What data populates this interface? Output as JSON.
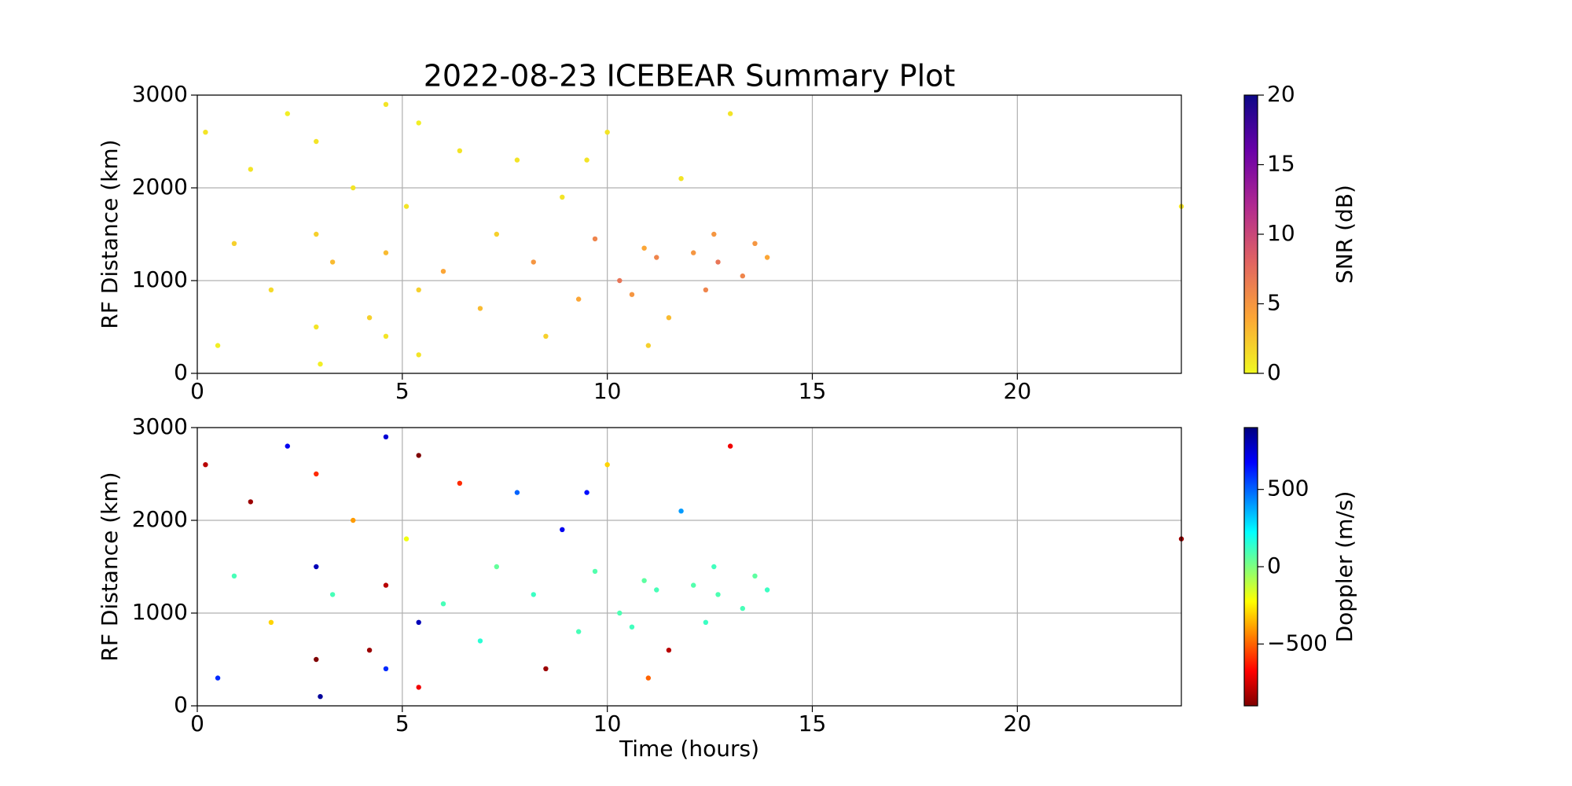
{
  "chart_data": [
    {
      "type": "scatter",
      "title": "2022-08-23 ICEBEAR Summary Plot",
      "y_label": "RF Distance (km)",
      "xlim": [
        0,
        24
      ],
      "xticks": [
        0,
        5,
        10,
        15,
        20
      ],
      "ylim": [
        0,
        3000
      ],
      "yticks": [
        0,
        1000,
        2000,
        3000
      ],
      "grid": true,
      "x": [
        0.2,
        0.5,
        0.9,
        1.3,
        1.8,
        2.2,
        2.9,
        2.9,
        2.9,
        3.0,
        3.3,
        3.8,
        4.2,
        4.6,
        4.6,
        4.6,
        5.1,
        5.4,
        5.4,
        5.4,
        6.0,
        6.4,
        6.9,
        7.3,
        7.8,
        8.2,
        8.5,
        8.9,
        9.3,
        9.7,
        10.0,
        10.3,
        10.6,
        10.9,
        11.2,
        11.5,
        11.8,
        12.1,
        12.4,
        12.7,
        13.0,
        13.3,
        13.6,
        13.9,
        9.5,
        11.0,
        12.6,
        24.0
      ],
      "values": [
        2600,
        300,
        1400,
        2200,
        900,
        2800,
        500,
        1500,
        2500,
        100,
        1200,
        2000,
        600,
        2900,
        1300,
        400,
        1800,
        2700,
        900,
        200,
        1100,
        2400,
        700,
        1500,
        2300,
        1200,
        400,
        1900,
        800,
        1450,
        2600,
        1000,
        850,
        1350,
        1250,
        600,
        2100,
        1300,
        900,
        1200,
        2800,
        1050,
        1400,
        1250,
        2300,
        300,
        1500,
        1800
      ],
      "color_values": [
        1,
        0.5,
        2,
        1,
        1.5,
        0.5,
        1,
        2,
        1,
        0.5,
        3,
        1,
        2,
        1,
        3,
        1,
        1,
        0.5,
        2,
        1,
        4,
        1,
        3,
        2,
        1,
        5,
        2,
        1,
        4,
        6,
        1,
        7,
        5,
        4,
        6,
        3,
        1,
        5,
        6,
        7,
        1,
        6,
        5,
        4,
        1,
        2,
        5,
        1
      ],
      "colorbar": {
        "label": "SNR (dB)",
        "lim": [
          0,
          20
        ],
        "ticks": [
          0,
          5,
          10,
          15,
          20
        ],
        "colors": [
          "#f0f921",
          "#fca636",
          "#e16462",
          "#b12a90",
          "#6a00a8",
          "#0d0887"
        ]
      }
    },
    {
      "type": "scatter",
      "y_label": "RF Distance (km)",
      "x_label": "Time (hours)",
      "xlim": [
        0,
        24
      ],
      "xticks": [
        0,
        5,
        10,
        15,
        20
      ],
      "ylim": [
        0,
        3000
      ],
      "yticks": [
        0,
        1000,
        2000,
        3000
      ],
      "grid": true,
      "x": [
        0.2,
        0.5,
        0.9,
        1.3,
        1.8,
        2.2,
        2.9,
        2.9,
        2.9,
        3.0,
        3.3,
        3.8,
        4.2,
        4.6,
        4.6,
        4.6,
        5.1,
        5.4,
        5.4,
        5.4,
        6.0,
        6.4,
        6.9,
        7.3,
        7.8,
        8.2,
        8.5,
        8.9,
        9.3,
        9.7,
        10.0,
        10.3,
        10.6,
        10.9,
        11.2,
        11.5,
        11.8,
        12.1,
        12.4,
        12.7,
        13.0,
        13.3,
        13.6,
        13.9,
        9.5,
        11.0,
        12.6,
        24.0
      ],
      "values": [
        2600,
        300,
        1400,
        2200,
        900,
        2800,
        500,
        1500,
        2500,
        100,
        1200,
        2000,
        600,
        2900,
        1300,
        400,
        1800,
        2700,
        900,
        200,
        1100,
        2400,
        700,
        1500,
        2300,
        1200,
        400,
        1900,
        800,
        1450,
        2600,
        1000,
        850,
        1350,
        1250,
        600,
        2100,
        1300,
        900,
        1200,
        2800,
        1050,
        1400,
        1250,
        2300,
        300,
        1500,
        1800
      ],
      "color_values": [
        -800,
        600,
        100,
        -850,
        -300,
        700,
        -900,
        800,
        -600,
        850,
        100,
        -400,
        -850,
        750,
        -800,
        600,
        -200,
        -900,
        800,
        -700,
        100,
        -600,
        150,
        50,
        500,
        120,
        -850,
        700,
        100,
        80,
        -300,
        90,
        110,
        60,
        100,
        -800,
        400,
        80,
        120,
        90,
        -700,
        100,
        60,
        120,
        650,
        -500,
        110,
        -850
      ],
      "colorbar": {
        "label": "Doppler (m/s)",
        "lim": [
          -900,
          900
        ],
        "ticks": [
          {
            "value": -500,
            "label": "−500"
          },
          0,
          500
        ],
        "colors": [
          "#7f0000",
          "#ff0000",
          "#ff7f00",
          "#ffff00",
          "#7fff7f",
          "#00ffff",
          "#007fff",
          "#0000ff",
          "#00007f"
        ]
      }
    }
  ]
}
